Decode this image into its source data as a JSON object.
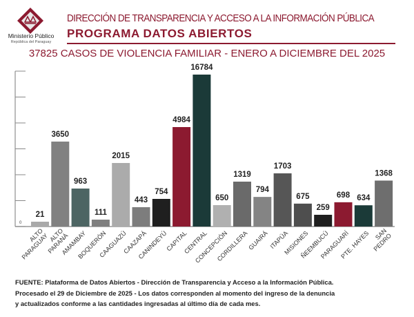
{
  "header": {
    "org_name": "Ministerio Público",
    "org_country": "República del Paraguay",
    "title": "DIRECCIÓN DE TRANSPARENCIA Y ACCESO A LA INFORMACIÓN PÚBLICA",
    "subtitle": "PROGRAMA  DATOS ABIERTOS"
  },
  "footer": {
    "line1": "FUENTE: Plataforma de Datos Abiertos - Dirección de Transparencia y Acceso a la Información Pública.",
    "line2": "Procesado el 29 de Diciembre de 2025 - Los datos corresponden al momento del ingreso de la denuncia",
    "line3": "y actualizados conforme a las cantidades ingresadas al último día de cada mes."
  },
  "colors": {
    "accent": "#8c1a30"
  },
  "chart_data": {
    "type": "bar",
    "title": "37825 CASOS DE VIOLENCIA FAMILIAR - ENERO A DICIEMBRE DEL 2025",
    "xlabel": "",
    "ylabel": "",
    "y_tick_labels": [
      "0"
    ],
    "grid": false,
    "legend": "none",
    "categories": [
      "ALTO PARAGUAY",
      "ALTO PARANÁ",
      "AMAMBAY",
      "BOQUERÓN",
      "CAAGUAZÚ",
      "CAAZAPÁ",
      "CANINDEYÚ",
      "CAPITAL",
      "CENTRAL",
      "CONCEPCIÓN",
      "CORDILLERA",
      "GUAIRÁ",
      "ITAPÚA",
      "MISIONES",
      "ÑEEMBUCÚ",
      "PARAGUARÍ",
      "PTE. HAYES",
      "SAN PEDRO"
    ],
    "category_lines": [
      [
        "ALTO",
        "PARAGUAY"
      ],
      [
        "ALTO",
        "PARANÁ"
      ],
      [
        "AMAMBAY"
      ],
      [
        "BOQUERÓN"
      ],
      [
        "CAAGUAZÚ"
      ],
      [
        "CAAZAPÁ"
      ],
      [
        "CANINDEYÚ"
      ],
      [
        "CAPITAL"
      ],
      [
        "CENTRAL"
      ],
      [
        "CONCEPCIÓN"
      ],
      [
        "CORDILLERA"
      ],
      [
        "GUAIRÁ"
      ],
      [
        "ITAPÚA"
      ],
      [
        "MISIONES"
      ],
      [
        "ÑEEMBUCÚ"
      ],
      [
        "PARAGUARÍ"
      ],
      [
        "PTE. HAYES"
      ],
      [
        "SAN",
        "PEDRO"
      ]
    ],
    "values": [
      21,
      3650,
      963,
      111,
      2015,
      443,
      754,
      4984,
      16784,
      650,
      1319,
      794,
      1703,
      675,
      259,
      698,
      634,
      1368
    ],
    "bar_colors": [
      "#a9a9a9",
      "#818181",
      "#4d6563",
      "#7f7f7f",
      "#ababab",
      "#7d7d7d",
      "#1f1f1f",
      "#8c1a30",
      "#1b3a38",
      "#b0b0b0",
      "#6a6a6a",
      "#848484",
      "#565656",
      "#4e4e4e",
      "#1f1f1f",
      "#8c1a30",
      "#1b3a38",
      "#6e6e6e"
    ]
  }
}
